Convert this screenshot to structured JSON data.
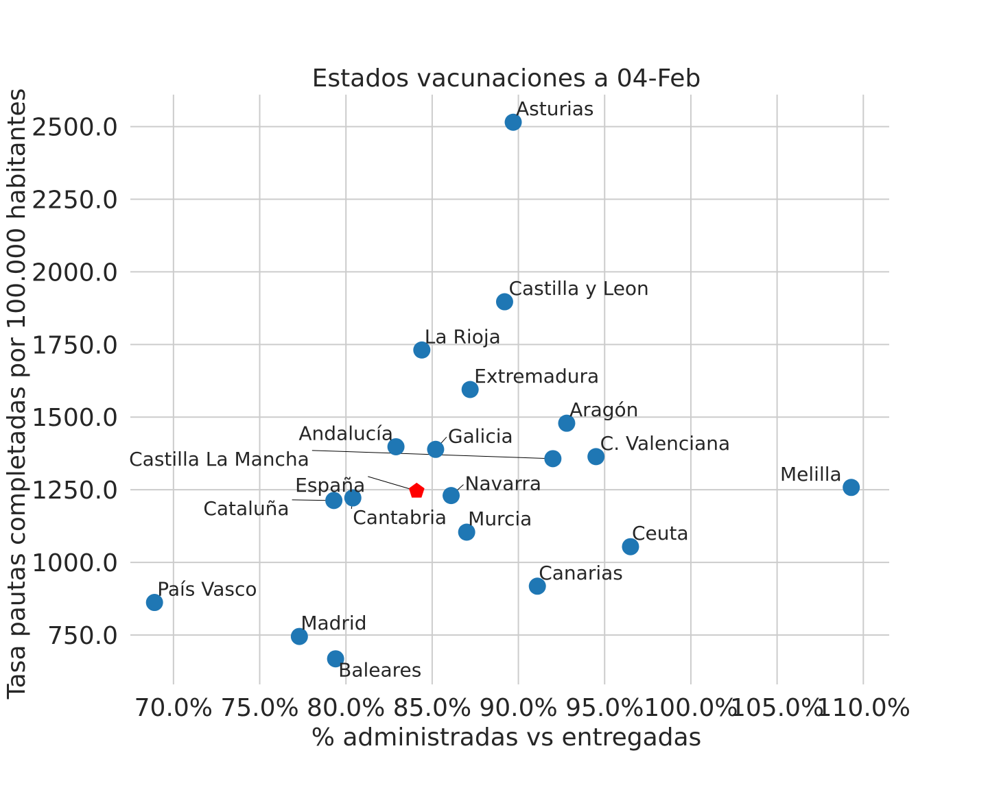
{
  "chart_data": {
    "type": "scatter",
    "title": "Estados vacunaciones a 04-Feb",
    "xlabel": "% administradas vs entregadas",
    "ylabel": "Tasa pautas completadas por 100.000 habitantes",
    "xlim": [
      67.5,
      111.5
    ],
    "ylim": [
      580,
      2610
    ],
    "x_ticks": [
      70,
      75,
      80,
      85,
      90,
      95,
      100,
      105,
      110
    ],
    "x_tick_labels": [
      "70.0%",
      "75.0%",
      "80.0%",
      "85.0%",
      "90.0%",
      "95.0%",
      "100.0%",
      "105.0%",
      "110.0%"
    ],
    "y_ticks": [
      750,
      1000,
      1250,
      1500,
      1750,
      2000,
      2250,
      2500
    ],
    "y_tick_labels": [
      "750.0",
      "1000.0",
      "1250.0",
      "1500.0",
      "1750.0",
      "2000.0",
      "2250.0",
      "2500.0"
    ],
    "grid": true,
    "colors": {
      "regions": "#1f77b4",
      "national": "#ff0000",
      "grid": "#cccccc",
      "text": "#262626"
    },
    "points": [
      {
        "name": "Asturias",
        "x": 89.7,
        "y": 2515,
        "marker": "circle"
      },
      {
        "name": "Castilla y Leon",
        "x": 89.2,
        "y": 1897,
        "marker": "circle"
      },
      {
        "name": "La Rioja",
        "x": 84.4,
        "y": 1731,
        "marker": "circle"
      },
      {
        "name": "Extremadura",
        "x": 87.2,
        "y": 1595,
        "marker": "circle"
      },
      {
        "name": "Aragón",
        "x": 92.8,
        "y": 1479,
        "marker": "circle"
      },
      {
        "name": "Andalucía",
        "x": 82.9,
        "y": 1398,
        "marker": "circle"
      },
      {
        "name": "Galicia",
        "x": 85.2,
        "y": 1389,
        "marker": "circle"
      },
      {
        "name": "C. Valenciana",
        "x": 94.5,
        "y": 1364,
        "marker": "circle"
      },
      {
        "name": "Castilla La Mancha",
        "x": 92.0,
        "y": 1357,
        "marker": "circle"
      },
      {
        "name": "Melilla",
        "x": 109.3,
        "y": 1258,
        "marker": "circle"
      },
      {
        "name": "España",
        "x": 84.1,
        "y": 1246,
        "marker": "pentagon"
      },
      {
        "name": "Navarra",
        "x": 86.1,
        "y": 1230,
        "marker": "circle"
      },
      {
        "name": "Cantabria",
        "x": 80.4,
        "y": 1222,
        "marker": "circle"
      },
      {
        "name": "Cataluña",
        "x": 79.3,
        "y": 1213,
        "marker": "circle"
      },
      {
        "name": "Murcia",
        "x": 87.0,
        "y": 1104,
        "marker": "circle"
      },
      {
        "name": "Ceuta",
        "x": 96.5,
        "y": 1054,
        "marker": "circle"
      },
      {
        "name": "Canarias",
        "x": 91.1,
        "y": 918,
        "marker": "circle"
      },
      {
        "name": "País Vasco",
        "x": 68.9,
        "y": 862,
        "marker": "circle"
      },
      {
        "name": "Madrid",
        "x": 77.3,
        "y": 745,
        "marker": "circle"
      },
      {
        "name": "Baleares",
        "x": 79.4,
        "y": 668,
        "marker": "circle"
      }
    ]
  }
}
